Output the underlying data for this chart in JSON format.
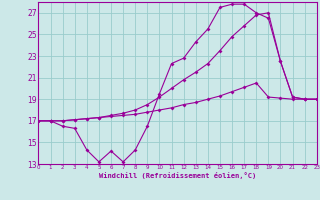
{
  "bg_color": "#cce8e8",
  "grid_color": "#99cccc",
  "line_color": "#990099",
  "xlim": [
    0,
    23
  ],
  "ylim": [
    13,
    28
  ],
  "xticks": [
    0,
    1,
    2,
    3,
    4,
    5,
    6,
    7,
    8,
    9,
    10,
    11,
    12,
    13,
    14,
    15,
    16,
    17,
    18,
    19,
    20,
    21,
    22,
    23
  ],
  "yticks": [
    13,
    15,
    17,
    19,
    21,
    23,
    25,
    27
  ],
  "xlabel": "Windchill (Refroidissement éolien,°C)",
  "line1_x": [
    0,
    1,
    2,
    3,
    4,
    5,
    6,
    7,
    8,
    9,
    10,
    11,
    12,
    13,
    14,
    15,
    16,
    17,
    18,
    19,
    20,
    21,
    22,
    23
  ],
  "line1_y": [
    17,
    17,
    16.5,
    16.3,
    14.3,
    13.2,
    14.2,
    13.2,
    14.3,
    16.5,
    19.5,
    22.3,
    22.8,
    24.3,
    25.5,
    27.5,
    27.8,
    27.8,
    27.0,
    26.5,
    22.5,
    19.2,
    19.0,
    19.0
  ],
  "line2_x": [
    0,
    1,
    2,
    3,
    4,
    5,
    6,
    7,
    8,
    9,
    10,
    11,
    12,
    13,
    14,
    15,
    16,
    17,
    18,
    19,
    20,
    21,
    22,
    23
  ],
  "line2_y": [
    17,
    17,
    17,
    17.1,
    17.2,
    17.3,
    17.4,
    17.5,
    17.6,
    17.8,
    18.0,
    18.2,
    18.5,
    18.7,
    19.0,
    19.3,
    19.7,
    20.1,
    20.5,
    19.2,
    19.1,
    19.0,
    19.0,
    19.0
  ],
  "line3_x": [
    0,
    1,
    2,
    3,
    4,
    5,
    6,
    7,
    8,
    9,
    10,
    11,
    12,
    13,
    14,
    15,
    16,
    17,
    18,
    19,
    20,
    21,
    22,
    23
  ],
  "line3_y": [
    17,
    17,
    17,
    17.1,
    17.2,
    17.3,
    17.5,
    17.7,
    18.0,
    18.5,
    19.2,
    20.0,
    20.8,
    21.5,
    22.3,
    23.5,
    24.8,
    25.8,
    26.8,
    27.0,
    22.5,
    19.2,
    19.0,
    19.0
  ]
}
